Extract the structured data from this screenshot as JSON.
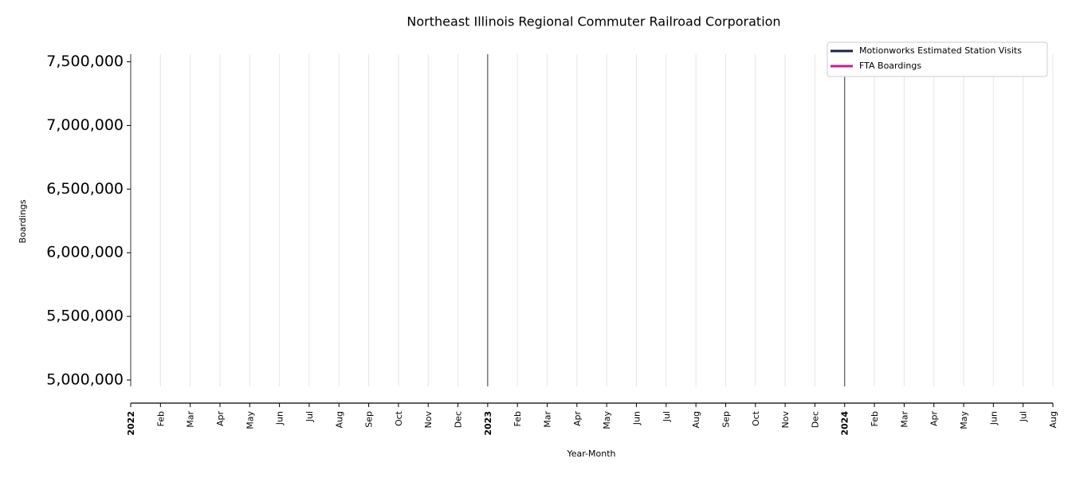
{
  "chart_data": {
    "type": "line",
    "title": "Northeast Illinois Regional Commuter Railroad Corporation",
    "xlabel": "Year-Month",
    "ylabel": "Boardings",
    "categories": [
      "2022",
      "Feb",
      "Mar",
      "Apr",
      "May",
      "Jun",
      "Jul",
      "Aug",
      "Sep",
      "Oct",
      "Nov",
      "Dec",
      "2023",
      "Feb",
      "Mar",
      "Apr",
      "May",
      "Jun",
      "Jul",
      "Aug",
      "Sep",
      "Oct",
      "Nov",
      "Dec",
      "2024",
      "Feb",
      "Mar",
      "Apr",
      "May",
      "Jun",
      "Jul",
      "Aug"
    ],
    "series": [
      {
        "name": "Motionworks Estimated Station Visits",
        "color": "#1f1f4f",
        "values": [
          null,
          null,
          null,
          null,
          null,
          null,
          null,
          null,
          null,
          null,
          null,
          null,
          null,
          null,
          null,
          null,
          null,
          null,
          null,
          null,
          null,
          null,
          null,
          null,
          null,
          null,
          null,
          null,
          null,
          null,
          null,
          null
        ]
      },
      {
        "name": "FTA Boardings",
        "color": "#c81e8c",
        "values": [
          null,
          null,
          null,
          null,
          null,
          null,
          null,
          null,
          null,
          null,
          null,
          null,
          null,
          null,
          null,
          null,
          null,
          null,
          null,
          null,
          null,
          null,
          null,
          null,
          null,
          null,
          null,
          null,
          null,
          null,
          null,
          null
        ]
      }
    ],
    "ylim": [
      4950000,
      7560000
    ],
    "yticks": [
      {
        "value": 5000000,
        "label": "5,000,000"
      },
      {
        "value": 5500000,
        "label": "5,500,000"
      },
      {
        "value": 6000000,
        "label": "6,000,000"
      },
      {
        "value": 6500000,
        "label": "6,500,000"
      },
      {
        "value": 7000000,
        "label": "7,000,000"
      },
      {
        "value": 7500000,
        "label": "7,500,000"
      }
    ],
    "grid": true,
    "legend": "upper right"
  }
}
